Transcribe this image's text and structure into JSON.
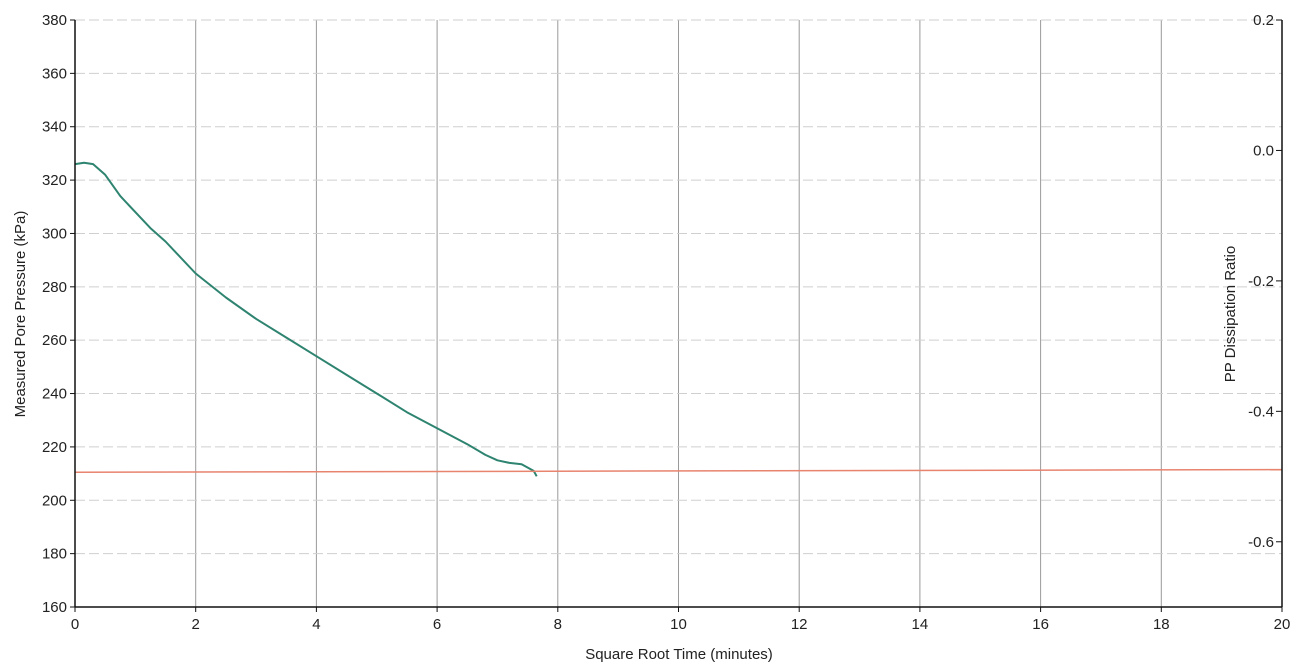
{
  "chart_data": {
    "type": "line",
    "title": "",
    "xlabel": "Square Root Time (minutes)",
    "ylabel": "Measured Pore Pressure (kPa)",
    "y2label": "PP Dissipation Ratio",
    "xlim": [
      0,
      20
    ],
    "ylim": [
      160,
      380
    ],
    "y2lim": [
      -0.7,
      0.2
    ],
    "x_ticks": [
      0,
      2,
      4,
      6,
      8,
      10,
      12,
      14,
      16,
      18,
      20
    ],
    "y_ticks": [
      160,
      180,
      200,
      220,
      240,
      260,
      280,
      300,
      320,
      340,
      360,
      380
    ],
    "y2_ticks": [
      "0.2",
      "0.0",
      "-0.2",
      "-0.4",
      "-0.6"
    ],
    "y2_tick_values": [
      0.2,
      0.0,
      -0.2,
      -0.4,
      -0.6
    ],
    "grid": true,
    "series": [
      {
        "color": "#2e8470",
        "x": [
          0.0,
          0.15,
          0.3,
          0.5,
          0.75,
          1.0,
          1.25,
          1.5,
          2.0,
          2.5,
          3.0,
          3.5,
          4.0,
          4.5,
          5.0,
          5.5,
          6.0,
          6.5,
          6.8,
          7.0,
          7.2,
          7.4,
          7.6,
          7.65
        ],
        "y": [
          326,
          326.5,
          326,
          322,
          314,
          308,
          302,
          297,
          285,
          276,
          268,
          261,
          254,
          247,
          240,
          233,
          227,
          221,
          217,
          215,
          214,
          213.5,
          211,
          209
        ]
      },
      {
        "color": "#e8836e",
        "x": [
          0,
          20
        ],
        "y": [
          210.5,
          211.5
        ]
      }
    ]
  }
}
